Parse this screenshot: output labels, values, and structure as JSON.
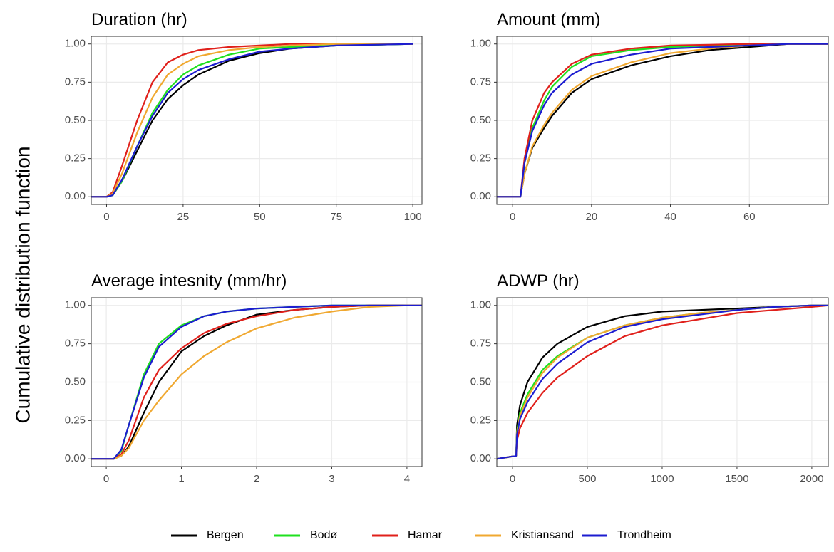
{
  "ylabel": "Cumulative distribution function",
  "chart_data": [
    {
      "type": "line",
      "title": "Duration (hr)",
      "x": [
        -5,
        0,
        2,
        5,
        10,
        15,
        20,
        25,
        30,
        40,
        50,
        60,
        75,
        100
      ],
      "xlim": [
        -5,
        103
      ],
      "xticks": [
        0,
        25,
        50,
        75,
        100
      ],
      "ylim": [
        -0.05,
        1.05
      ],
      "yticks": [
        {
          "value": 0,
          "label": "0.00"
        },
        {
          "value": 0.25,
          "label": "0.25"
        },
        {
          "value": 0.5,
          "label": "0.50"
        },
        {
          "value": 0.75,
          "label": "0.75"
        },
        {
          "value": 1,
          "label": "1.00"
        }
      ],
      "grid": true,
      "series": [
        {
          "name": "Bergen",
          "color": "#000000",
          "values": [
            0,
            0,
            0.01,
            0.1,
            0.3,
            0.5,
            0.64,
            0.73,
            0.8,
            0.89,
            0.94,
            0.97,
            0.99,
            1
          ]
        },
        {
          "name": "Bodø",
          "color": "#1fe01f",
          "values": [
            0,
            0,
            0.01,
            0.1,
            0.33,
            0.55,
            0.7,
            0.8,
            0.86,
            0.93,
            0.97,
            0.98,
            0.99,
            1
          ]
        },
        {
          "name": "Hamar",
          "color": "#e0201b",
          "values": [
            0,
            0,
            0.03,
            0.2,
            0.5,
            0.75,
            0.88,
            0.93,
            0.96,
            0.98,
            0.99,
            1,
            1,
            1
          ]
        },
        {
          "name": "Kristiansand",
          "color": "#f0a830",
          "values": [
            0,
            0,
            0.02,
            0.15,
            0.42,
            0.65,
            0.8,
            0.87,
            0.92,
            0.96,
            0.98,
            0.99,
            1,
            1
          ]
        },
        {
          "name": "Trondheim",
          "color": "#1c1cd0",
          "values": [
            0,
            0,
            0.01,
            0.11,
            0.33,
            0.53,
            0.68,
            0.77,
            0.83,
            0.9,
            0.95,
            0.97,
            0.99,
            1
          ]
        }
      ]
    },
    {
      "type": "line",
      "title": "Amount (mm)",
      "x": [
        -4,
        2,
        3,
        5,
        8,
        10,
        15,
        20,
        30,
        40,
        50,
        60,
        70,
        80
      ],
      "xlim": [
        -4,
        80
      ],
      "xticks": [
        0,
        20,
        40,
        60
      ],
      "ylim": [
        -0.05,
        1.05
      ],
      "yticks": [
        {
          "value": 0,
          "label": "0.00"
        },
        {
          "value": 0.25,
          "label": "0.25"
        },
        {
          "value": 0.5,
          "label": "0.50"
        },
        {
          "value": 0.75,
          "label": "0.75"
        },
        {
          "value": 1,
          "label": "1.00"
        }
      ],
      "grid": true,
      "series": [
        {
          "name": "Bergen",
          "color": "#000000",
          "values": [
            0,
            0,
            0.15,
            0.32,
            0.45,
            0.53,
            0.68,
            0.77,
            0.86,
            0.92,
            0.96,
            0.98,
            1,
            1
          ]
        },
        {
          "name": "Bodø",
          "color": "#1fe01f",
          "values": [
            0,
            0,
            0.22,
            0.45,
            0.63,
            0.72,
            0.85,
            0.92,
            0.96,
            0.98,
            0.99,
            1,
            1,
            1
          ]
        },
        {
          "name": "Hamar",
          "color": "#e0201b",
          "values": [
            0,
            0,
            0.25,
            0.5,
            0.68,
            0.75,
            0.87,
            0.93,
            0.97,
            0.99,
            0.995,
            1,
            1,
            1
          ]
        },
        {
          "name": "Kristiansand",
          "color": "#f0a830",
          "values": [
            0,
            0,
            0.15,
            0.33,
            0.47,
            0.55,
            0.7,
            0.79,
            0.88,
            0.94,
            0.97,
            0.99,
            1,
            1
          ]
        },
        {
          "name": "Trondheim",
          "color": "#1c1cd0",
          "values": [
            0,
            0,
            0.22,
            0.43,
            0.6,
            0.68,
            0.8,
            0.87,
            0.93,
            0.97,
            0.98,
            0.99,
            1,
            1
          ]
        }
      ]
    },
    {
      "type": "line",
      "title": "Average intesnity (mm/hr)",
      "x": [
        -0.2,
        0.1,
        0.2,
        0.3,
        0.5,
        0.7,
        1,
        1.3,
        1.6,
        2,
        2.5,
        3,
        3.5,
        4,
        4.2
      ],
      "xlim": [
        -0.2,
        4.2
      ],
      "xticks": [
        0,
        1,
        2,
        3,
        4
      ],
      "ylim": [
        -0.05,
        1.05
      ],
      "yticks": [
        {
          "value": 0,
          "label": "0.00"
        },
        {
          "value": 0.25,
          "label": "0.25"
        },
        {
          "value": 0.5,
          "label": "0.50"
        },
        {
          "value": 0.75,
          "label": "0.75"
        },
        {
          "value": 1,
          "label": "1.00"
        }
      ],
      "grid": true,
      "series": [
        {
          "name": "Bergen",
          "color": "#000000",
          "values": [
            0,
            0,
            0.02,
            0.08,
            0.3,
            0.5,
            0.7,
            0.8,
            0.87,
            0.94,
            0.97,
            0.99,
            1,
            1,
            1
          ]
        },
        {
          "name": "Bodø",
          "color": "#1fe01f",
          "values": [
            0,
            0,
            0.05,
            0.22,
            0.55,
            0.75,
            0.87,
            0.93,
            0.96,
            0.98,
            0.99,
            1,
            1,
            1,
            1
          ]
        },
        {
          "name": "Hamar",
          "color": "#e0201b",
          "values": [
            0,
            0,
            0.03,
            0.12,
            0.4,
            0.58,
            0.72,
            0.82,
            0.88,
            0.93,
            0.97,
            0.99,
            1,
            1,
            1
          ]
        },
        {
          "name": "Kristiansand",
          "color": "#f0a830",
          "values": [
            0,
            0,
            0.02,
            0.07,
            0.25,
            0.38,
            0.55,
            0.67,
            0.76,
            0.85,
            0.92,
            0.96,
            0.99,
            1,
            1
          ]
        },
        {
          "name": "Trondheim",
          "color": "#1c1cd0",
          "values": [
            0,
            0,
            0.06,
            0.22,
            0.53,
            0.73,
            0.86,
            0.93,
            0.96,
            0.98,
            0.99,
            1,
            1,
            1,
            1
          ]
        }
      ]
    },
    {
      "type": "line",
      "title": "ADWP (hr)",
      "x": [
        -105,
        24,
        30,
        50,
        100,
        200,
        300,
        500,
        750,
        1000,
        1250,
        1500,
        1750,
        2000,
        2110
      ],
      "xlim": [
        -105,
        2110
      ],
      "xticks": [
        0,
        500,
        1000,
        1500,
        2000
      ],
      "ylim": [
        -0.05,
        1.05
      ],
      "yticks": [
        {
          "value": 0,
          "label": "0.00"
        },
        {
          "value": 0.25,
          "label": "0.25"
        },
        {
          "value": 0.5,
          "label": "0.50"
        },
        {
          "value": 0.75,
          "label": "0.75"
        },
        {
          "value": 1,
          "label": "1.00"
        }
      ],
      "grid": true,
      "series": [
        {
          "name": "Bergen",
          "color": "#000000",
          "values": [
            0,
            0.02,
            0.22,
            0.35,
            0.5,
            0.66,
            0.75,
            0.86,
            0.93,
            0.96,
            0.97,
            0.98,
            0.99,
            1,
            1
          ]
        },
        {
          "name": "Bodø",
          "color": "#1fe01f",
          "values": [
            0,
            0.02,
            0.18,
            0.3,
            0.42,
            0.58,
            0.67,
            0.79,
            0.87,
            0.92,
            0.95,
            0.97,
            0.99,
            1,
            1
          ]
        },
        {
          "name": "Hamar",
          "color": "#e0201b",
          "values": [
            0,
            0.02,
            0.12,
            0.2,
            0.3,
            0.43,
            0.53,
            0.67,
            0.8,
            0.87,
            0.91,
            0.95,
            0.97,
            0.99,
            1
          ]
        },
        {
          "name": "Kristiansand",
          "color": "#f0a830",
          "values": [
            0,
            0.02,
            0.17,
            0.28,
            0.4,
            0.56,
            0.66,
            0.79,
            0.87,
            0.92,
            0.95,
            0.97,
            0.99,
            1,
            1
          ]
        },
        {
          "name": "Trondheim",
          "color": "#1c1cd0",
          "values": [
            0,
            0.02,
            0.16,
            0.26,
            0.37,
            0.52,
            0.62,
            0.76,
            0.86,
            0.91,
            0.94,
            0.97,
            0.99,
            1,
            1
          ]
        }
      ]
    }
  ]
}
